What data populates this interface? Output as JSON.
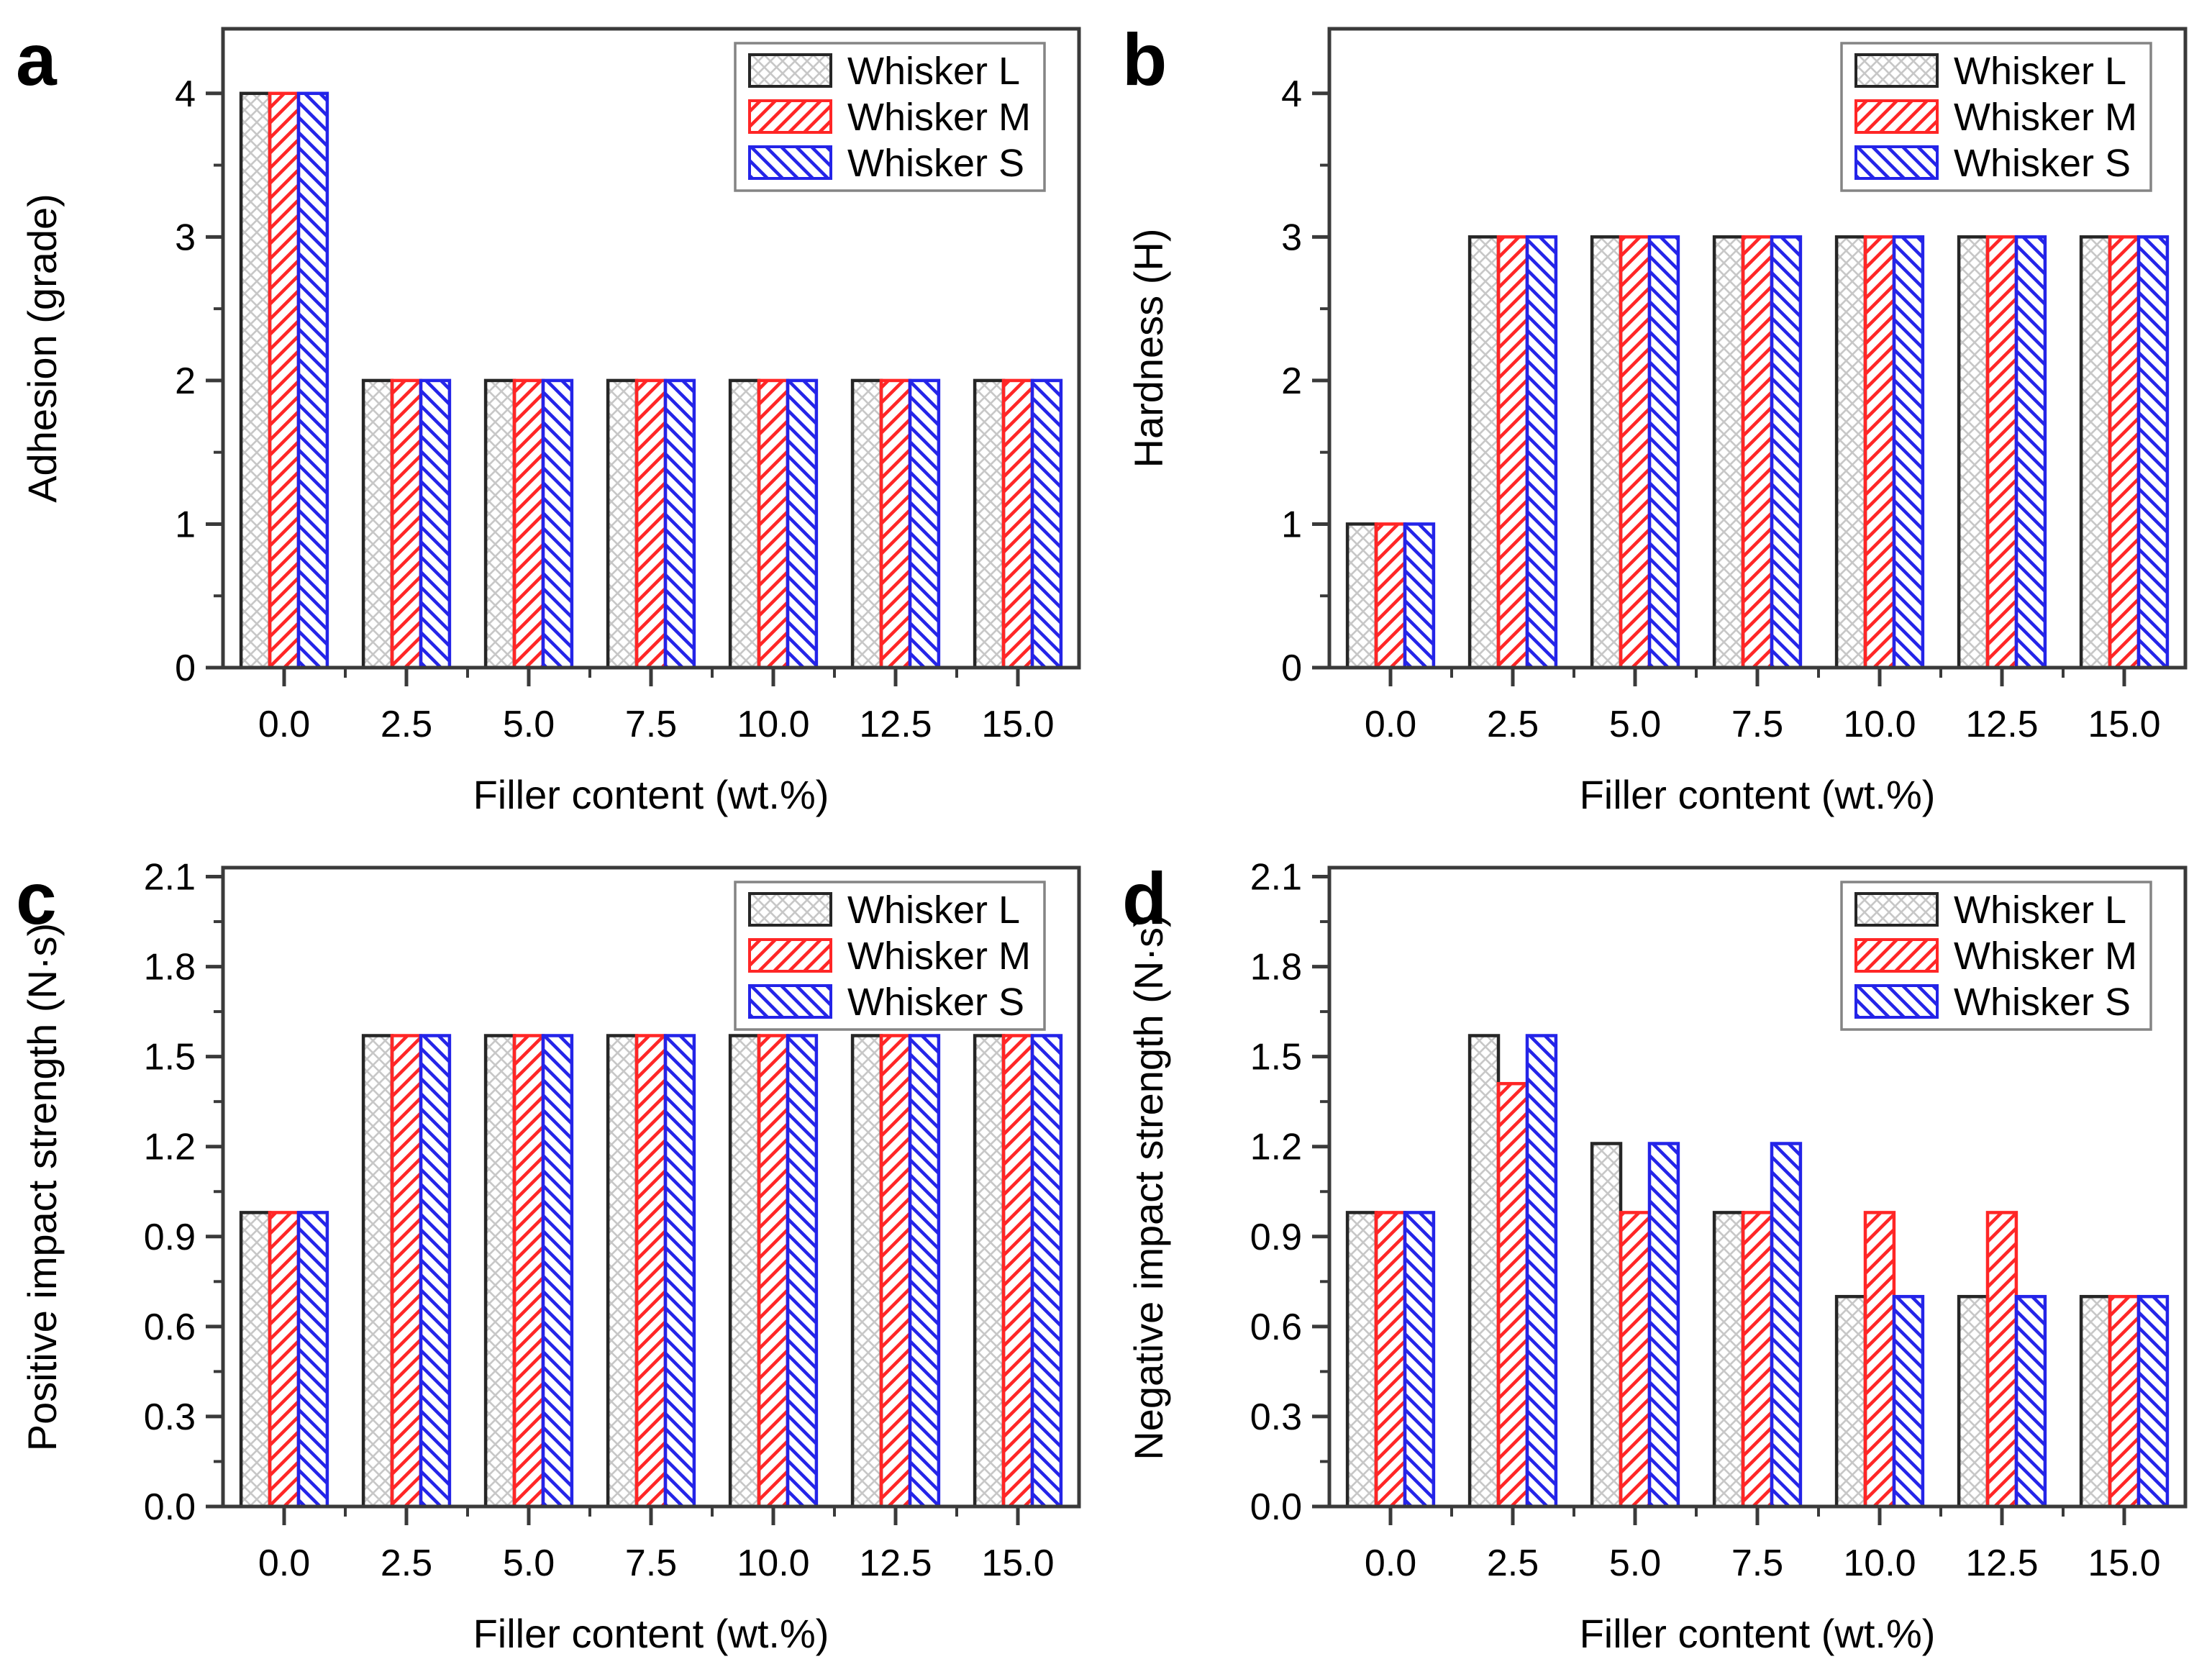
{
  "figure": {
    "background": "#ffffff",
    "frame_color": "#3a3a3a",
    "text_color": "#000000",
    "legend_border_color": "#848484"
  },
  "series_styles": [
    {
      "name": "Whisker L",
      "edge_color": "#262626",
      "hatch": "crosshatch",
      "hatch_color": "#c7c7c7"
    },
    {
      "name": "Whisker M",
      "edge_color": "#ff2626",
      "hatch": "diagonal-up",
      "hatch_color": "#ff2626"
    },
    {
      "name": "Whisker S",
      "edge_color": "#2424e8",
      "hatch": "diagonal-down",
      "hatch_color": "#2424e8"
    }
  ],
  "chart_data": [
    {
      "type": "bar",
      "panel_label": "a",
      "xlabel": "Filler content (wt.%)",
      "ylabel": "Adhesion (grade)",
      "categories": [
        "0.0",
        "2.5",
        "5.0",
        "7.5",
        "10.0",
        "12.5",
        "15.0"
      ],
      "ylim": [
        0,
        4.45
      ],
      "yticks": [
        0,
        1,
        2,
        3,
        4
      ],
      "ytick_labels": [
        "0",
        "1",
        "2",
        "3",
        "4"
      ],
      "minor_y_step": 0.5,
      "grid": false,
      "legend_position": "top-right",
      "legend": [
        "Whisker L",
        "Whisker M",
        "Whisker S"
      ],
      "series": [
        {
          "name": "Whisker L",
          "values": [
            4,
            2,
            2,
            2,
            2,
            2,
            2
          ]
        },
        {
          "name": "Whisker M",
          "values": [
            4,
            2,
            2,
            2,
            2,
            2,
            2
          ]
        },
        {
          "name": "Whisker S",
          "values": [
            4,
            2,
            2,
            2,
            2,
            2,
            2
          ]
        }
      ]
    },
    {
      "type": "bar",
      "panel_label": "b",
      "xlabel": "Filler content (wt.%)",
      "ylabel": "Hardness (H)",
      "categories": [
        "0.0",
        "2.5",
        "5.0",
        "7.5",
        "10.0",
        "12.5",
        "15.0"
      ],
      "ylim": [
        0,
        4.45
      ],
      "yticks": [
        0,
        1,
        2,
        3,
        4
      ],
      "ytick_labels": [
        "0",
        "1",
        "2",
        "3",
        "4"
      ],
      "minor_y_step": 0.5,
      "grid": false,
      "legend_position": "top-right",
      "legend": [
        "Whisker L",
        "Whisker M",
        "Whisker S"
      ],
      "series": [
        {
          "name": "Whisker L",
          "values": [
            1,
            3,
            3,
            3,
            3,
            3,
            3
          ]
        },
        {
          "name": "Whisker M",
          "values": [
            1,
            3,
            3,
            3,
            3,
            3,
            3
          ]
        },
        {
          "name": "Whisker S",
          "values": [
            1,
            3,
            3,
            3,
            3,
            3,
            3
          ]
        }
      ]
    },
    {
      "type": "bar",
      "panel_label": "c",
      "xlabel": "Filler content (wt.%)",
      "ylabel": "Positive impact strength (N·s)",
      "categories": [
        "0.0",
        "2.5",
        "5.0",
        "7.5",
        "10.0",
        "12.5",
        "15.0"
      ],
      "ylim": [
        0,
        2.13
      ],
      "yticks": [
        0,
        0.3,
        0.6,
        0.9,
        1.2,
        1.5,
        1.8,
        2.1
      ],
      "ytick_labels": [
        "0.0",
        "0.3",
        "0.6",
        "0.9",
        "1.2",
        "1.5",
        "1.8",
        "2.1"
      ],
      "minor_y_step": 0.15,
      "grid": false,
      "legend_position": "top-right",
      "legend": [
        "Whisker L",
        "Whisker M",
        "Whisker S"
      ],
      "series": [
        {
          "name": "Whisker L",
          "values": [
            0.98,
            1.57,
            1.57,
            1.57,
            1.57,
            1.57,
            1.57
          ]
        },
        {
          "name": "Whisker M",
          "values": [
            0.98,
            1.57,
            1.57,
            1.57,
            1.57,
            1.57,
            1.57
          ]
        },
        {
          "name": "Whisker S",
          "values": [
            0.98,
            1.57,
            1.57,
            1.57,
            1.57,
            1.57,
            1.57
          ]
        }
      ]
    },
    {
      "type": "bar",
      "panel_label": "d",
      "xlabel": "Filler content (wt.%)",
      "ylabel": "Negative impact strength (N·s)",
      "categories": [
        "0.0",
        "2.5",
        "5.0",
        "7.5",
        "10.0",
        "12.5",
        "15.0"
      ],
      "ylim": [
        0,
        2.13
      ],
      "yticks": [
        0,
        0.3,
        0.6,
        0.9,
        1.2,
        1.5,
        1.8,
        2.1
      ],
      "ytick_labels": [
        "0.0",
        "0.3",
        "0.6",
        "0.9",
        "1.2",
        "1.5",
        "1.8",
        "2.1"
      ],
      "minor_y_step": 0.15,
      "grid": false,
      "legend_position": "top-right",
      "legend": [
        "Whisker L",
        "Whisker M",
        "Whisker S"
      ],
      "series": [
        {
          "name": "Whisker L",
          "values": [
            0.98,
            1.57,
            1.21,
            0.98,
            0.7,
            0.7,
            0.7
          ]
        },
        {
          "name": "Whisker M",
          "values": [
            0.98,
            1.41,
            0.98,
            0.98,
            0.98,
            0.98,
            0.7
          ]
        },
        {
          "name": "Whisker S",
          "values": [
            0.98,
            1.57,
            1.21,
            1.21,
            0.7,
            0.7,
            0.7
          ]
        }
      ]
    }
  ]
}
